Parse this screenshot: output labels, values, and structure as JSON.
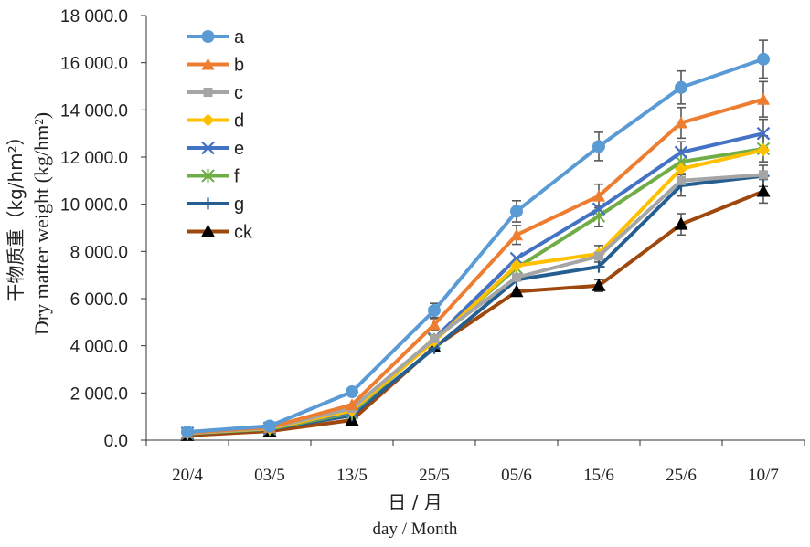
{
  "chart_data": {
    "type": "line",
    "ylabel_cn": "干物质重（kg/hm²）",
    "ylabel_en": "Dry matter weight (kg/hm²)",
    "xlabel_cn": "日 / 月",
    "xlabel_en": "day  /  Month",
    "categories": [
      "20/4",
      "03/5",
      "13/5",
      "25/5",
      "05/6",
      "15/6",
      "25/6",
      "10/7"
    ],
    "ylim": [
      0,
      18000
    ],
    "yticks": [
      0,
      2000,
      4000,
      6000,
      8000,
      10000,
      12000,
      14000,
      16000,
      18000
    ],
    "ytick_labels": [
      "0.0",
      "2 000.0",
      "4 000.0",
      "6 000.0",
      "8 000.0",
      "10 000.0",
      "12 000.0",
      "14 000.0",
      "16 000.0",
      "18 000.0"
    ],
    "grid": false,
    "legend_position": "top-left",
    "series": [
      {
        "name": "a",
        "color": "#5B9BD5",
        "marker": "circle",
        "values": [
          350,
          600,
          2050,
          5500,
          9700,
          12450,
          14950,
          16150
        ],
        "errors": [
          0,
          0,
          0,
          300,
          450,
          600,
          700,
          800
        ]
      },
      {
        "name": "b",
        "color": "#ED7D31",
        "marker": "triangle",
        "values": [
          320,
          550,
          1500,
          4900,
          8700,
          10350,
          13450,
          14450
        ],
        "errors": [
          0,
          0,
          0,
          250,
          400,
          500,
          650,
          750
        ]
      },
      {
        "name": "c",
        "color": "#A5A5A5",
        "marker": "square",
        "values": [
          300,
          520,
          1350,
          4300,
          6900,
          7800,
          11000,
          11250
        ],
        "errors": [
          0,
          0,
          0,
          0,
          0,
          0,
          0,
          0
        ]
      },
      {
        "name": "d",
        "color": "#FFC000",
        "marker": "diamond",
        "values": [
          290,
          500,
          1250,
          4200,
          7400,
          7900,
          11500,
          12300
        ],
        "errors": [
          0,
          0,
          0,
          0,
          0,
          350,
          0,
          0
        ]
      },
      {
        "name": "e",
        "color": "#4472C4",
        "marker": "x",
        "values": [
          300,
          520,
          1200,
          4300,
          7700,
          9800,
          12200,
          13000
        ],
        "errors": [
          0,
          0,
          0,
          0,
          0,
          0,
          450,
          600
        ]
      },
      {
        "name": "f",
        "color": "#70AD47",
        "marker": "star",
        "values": [
          280,
          480,
          1150,
          4250,
          7300,
          9500,
          11800,
          12350
        ],
        "errors": [
          0,
          0,
          0,
          0,
          0,
          450,
          500,
          550
        ]
      },
      {
        "name": "g",
        "color": "#255E91",
        "marker": "plus",
        "values": [
          270,
          470,
          1050,
          3900,
          6800,
          7350,
          10800,
          11200
        ],
        "errors": [
          0,
          0,
          0,
          0,
          0,
          0,
          450,
          450
        ]
      },
      {
        "name": "ck",
        "color": "#9E480E",
        "marker": "triangle-black",
        "values": [
          200,
          380,
          850,
          3950,
          6300,
          6550,
          9150,
          10550
        ],
        "errors": [
          0,
          0,
          0,
          0,
          0,
          250,
          450,
          500
        ]
      }
    ]
  }
}
